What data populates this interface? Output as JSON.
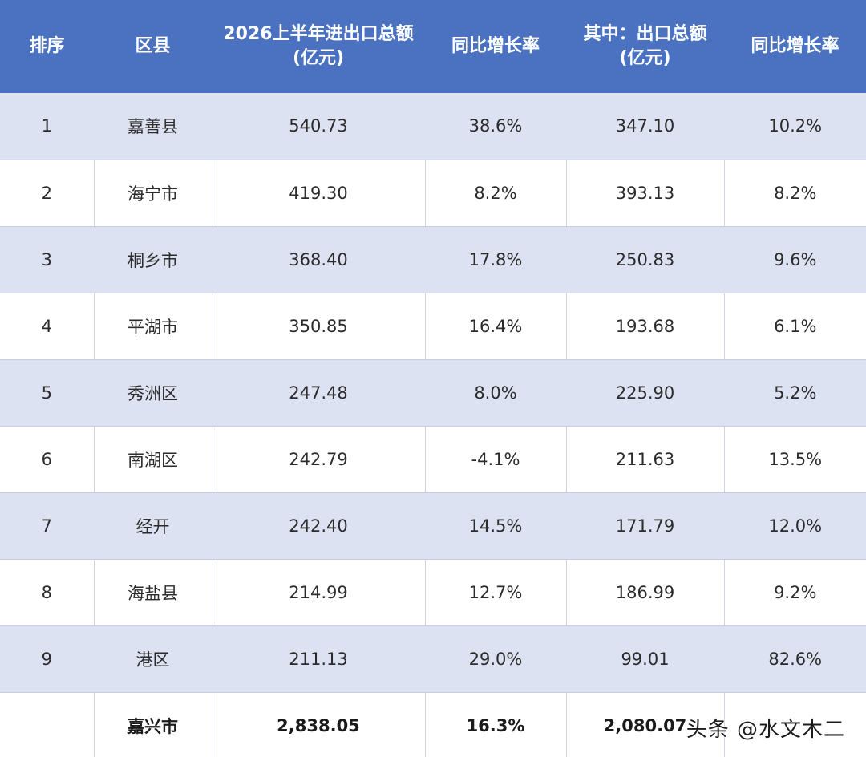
{
  "table": {
    "headers": {
      "rank": "排序",
      "district": "区县",
      "total_line1": "2026上半年进出口总额",
      "total_line2": "(亿元)",
      "total_growth": "同比增长率",
      "export_line1": "其中：出口总额",
      "export_line2": "(亿元)",
      "export_growth": "同比增长率"
    },
    "rows": [
      {
        "rank": "1",
        "district": "嘉善县",
        "total": "540.73",
        "total_growth": "38.6%",
        "export": "347.10",
        "export_growth": "10.2%"
      },
      {
        "rank": "2",
        "district": "海宁市",
        "total": "419.30",
        "total_growth": "8.2%",
        "export": "393.13",
        "export_growth": "8.2%"
      },
      {
        "rank": "3",
        "district": "桐乡市",
        "total": "368.40",
        "total_growth": "17.8%",
        "export": "250.83",
        "export_growth": "9.6%"
      },
      {
        "rank": "4",
        "district": "平湖市",
        "total": "350.85",
        "total_growth": "16.4%",
        "export": "193.68",
        "export_growth": "6.1%"
      },
      {
        "rank": "5",
        "district": "秀洲区",
        "total": "247.48",
        "total_growth": "8.0%",
        "export": "225.90",
        "export_growth": "5.2%"
      },
      {
        "rank": "6",
        "district": "南湖区",
        "total": "242.79",
        "total_growth": "-4.1%",
        "export": "211.63",
        "export_growth": "13.5%"
      },
      {
        "rank": "7",
        "district": "经开",
        "total": "242.40",
        "total_growth": "14.5%",
        "export": "171.79",
        "export_growth": "12.0%"
      },
      {
        "rank": "8",
        "district": "海盐县",
        "total": "214.99",
        "total_growth": "12.7%",
        "export": "186.99",
        "export_growth": "9.2%"
      },
      {
        "rank": "9",
        "district": "港区",
        "total": "211.13",
        "total_growth": "29.0%",
        "export": "99.01",
        "export_growth": "82.6%"
      }
    ],
    "total_row": {
      "rank": "",
      "district": "嘉兴市",
      "total": "2,838.05",
      "total_growth": "16.3%",
      "export": "2,080.07",
      "export_growth": ""
    }
  },
  "watermark": "头条 @水文木二",
  "colors": {
    "header_bg": "#4a72c0",
    "shaded_row": "#dde2f2",
    "plain_row": "#ffffff"
  }
}
